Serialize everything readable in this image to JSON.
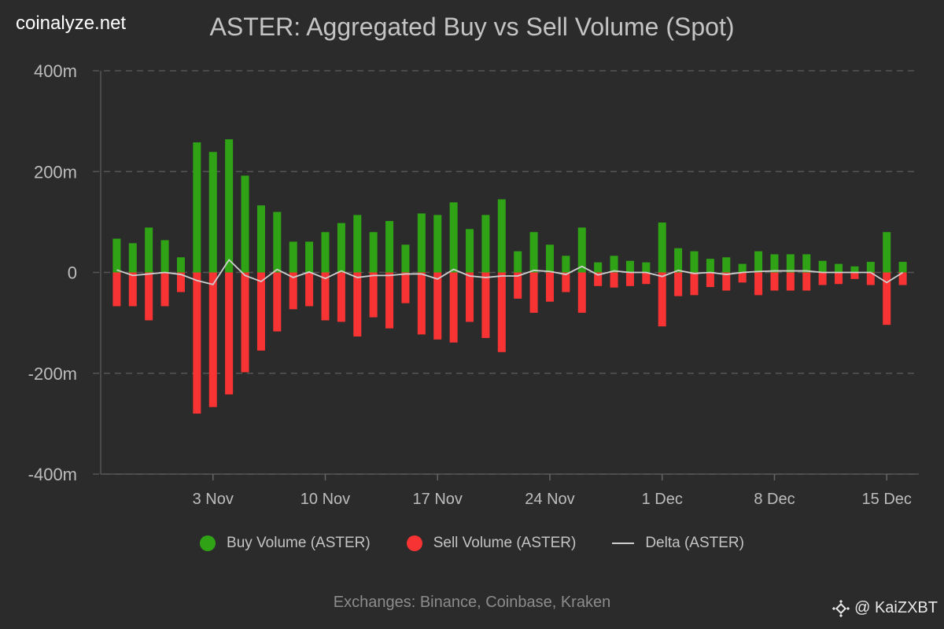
{
  "brand": "coinalyze.net",
  "watermark": "@ KaiZXBT",
  "footer": "Exchanges: Binance, Coinbase, Kraken",
  "colors": {
    "background": "#2b2b2b",
    "buy": "#2fa315",
    "sell": "#f83333",
    "delta": "#cfcfcf",
    "grid": "#555555"
  },
  "chart_data": {
    "type": "bar",
    "title": "ASTER: Aggregated Buy vs Sell Volume (Spot)",
    "ylim": [
      -400,
      400
    ],
    "yticks": [
      400,
      200,
      0,
      -200,
      -400
    ],
    "ytick_labels": [
      "400m",
      "200m",
      "0",
      "-200m",
      "-400m"
    ],
    "grid": "horizontal dashed",
    "legend_placement": "bottom",
    "x_start": "2025-10-28",
    "xticks": [
      {
        "date": "2025-11-03",
        "label": "3 Nov"
      },
      {
        "date": "2025-11-10",
        "label": "10 Nov"
      },
      {
        "date": "2025-11-17",
        "label": "17 Nov"
      },
      {
        "date": "2025-11-24",
        "label": "24 Nov"
      },
      {
        "date": "2025-12-01",
        "label": "1 Dec"
      },
      {
        "date": "2025-12-08",
        "label": "8 Dec"
      },
      {
        "date": "2025-12-15",
        "label": "15 Dec"
      }
    ],
    "series": [
      {
        "name": "Buy Volume (ASTER)",
        "type": "bar",
        "values": [
          67,
          58,
          89,
          64,
          30,
          258,
          239,
          264,
          192,
          133,
          120,
          61,
          61,
          80,
          98,
          114,
          80,
          102,
          55,
          117,
          114,
          139,
          86,
          114,
          145,
          42,
          80,
          55,
          33,
          89,
          20,
          33,
          23,
          20,
          99,
          48,
          42,
          27,
          30,
          17,
          42,
          36,
          36,
          36,
          23,
          17,
          12,
          21,
          80,
          21
        ]
      },
      {
        "name": "Sell Volume (ASTER)",
        "type": "bar",
        "values": [
          -67,
          -67,
          -95,
          -67,
          -39,
          -280,
          -267,
          -242,
          -198,
          -155,
          -117,
          -73,
          -67,
          -95,
          -98,
          -127,
          -89,
          -111,
          -61,
          -123,
          -133,
          -139,
          -98,
          -130,
          -158,
          -52,
          -80,
          -58,
          -39,
          -80,
          -27,
          -30,
          -27,
          -23,
          -107,
          -47,
          -45,
          -29,
          -36,
          -20,
          -45,
          -36,
          -36,
          -36,
          -25,
          -23,
          -13,
          -25,
          -104,
          -25
        ]
      },
      {
        "name": "Delta (ASTER)",
        "type": "line",
        "values": [
          5,
          -6,
          -3,
          0,
          -4,
          -16,
          -24,
          25,
          -6,
          -18,
          6,
          -10,
          1,
          -12,
          3,
          -10,
          -6,
          -6,
          -3,
          -3,
          -13,
          6,
          -7,
          -10,
          -7,
          -7,
          4,
          2,
          -4,
          12,
          -5,
          3,
          0,
          0,
          -8,
          4,
          -2,
          0,
          -4,
          0,
          2,
          3,
          3,
          3,
          0,
          0,
          0,
          0,
          -20,
          0
        ]
      }
    ]
  }
}
